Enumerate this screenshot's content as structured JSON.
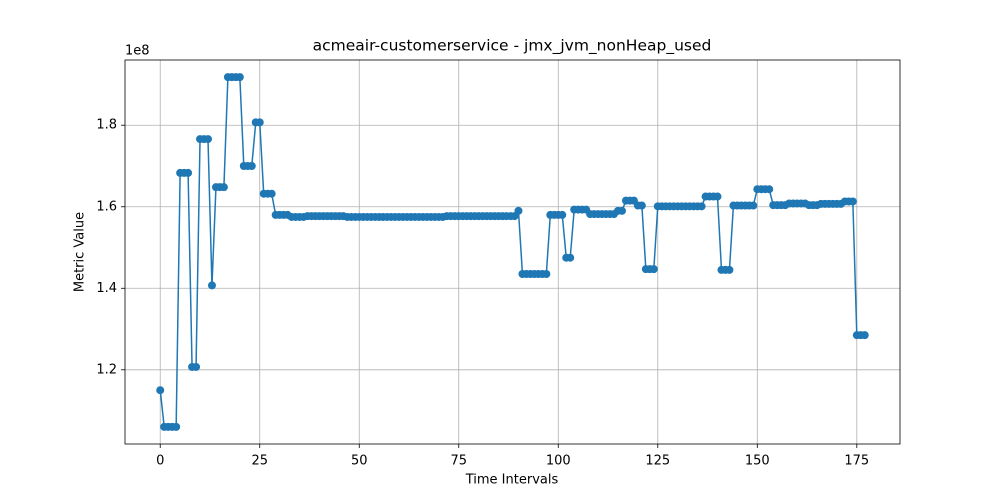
{
  "chart_data": {
    "type": "line",
    "title": "acmeair-customerservice - jmx_jvm_nonHeap_used",
    "x_label": "Time Intervals",
    "y_label": "Metric Value",
    "y_offset_text": "1e8",
    "color": "#1f77b4",
    "grid": true,
    "xlim": [
      -8.85,
      185.85
    ],
    "ylim": [
      1.018,
      1.96
    ],
    "xticks": [
      0,
      25,
      50,
      75,
      100,
      125,
      150,
      175
    ],
    "yticks": [
      1.2,
      1.4,
      1.6,
      1.8
    ],
    "x": [
      0,
      1,
      2,
      3,
      4,
      5,
      6,
      7,
      8,
      9,
      10,
      11,
      12,
      13,
      14,
      15,
      16,
      17,
      18,
      19,
      20,
      21,
      22,
      23,
      24,
      25,
      26,
      27,
      28,
      29,
      30,
      31,
      32,
      33,
      34,
      35,
      36,
      37,
      38,
      39,
      40,
      41,
      42,
      43,
      44,
      45,
      46,
      47,
      48,
      49,
      50,
      51,
      52,
      53,
      54,
      55,
      56,
      57,
      58,
      59,
      60,
      61,
      62,
      63,
      64,
      65,
      66,
      67,
      68,
      69,
      70,
      71,
      72,
      73,
      74,
      75,
      76,
      77,
      78,
      79,
      80,
      81,
      82,
      83,
      84,
      85,
      86,
      87,
      88,
      89,
      90,
      91,
      92,
      93,
      94,
      95,
      96,
      97,
      98,
      99,
      100,
      101,
      102,
      103,
      104,
      105,
      106,
      107,
      108,
      109,
      110,
      111,
      112,
      113,
      114,
      115,
      116,
      117,
      118,
      119,
      120,
      121,
      122,
      123,
      124,
      125,
      126,
      127,
      128,
      129,
      130,
      131,
      132,
      133,
      134,
      135,
      136,
      137,
      138,
      139,
      140,
      141,
      142,
      143,
      144,
      145,
      146,
      147,
      148,
      149,
      150,
      151,
      152,
      153,
      154,
      155,
      156,
      157,
      158,
      159,
      160,
      161,
      162,
      163,
      164,
      165,
      166,
      167,
      168,
      169,
      170,
      171,
      172,
      173,
      174,
      175,
      176,
      177
    ],
    "values": [
      1.15,
      1.06,
      1.06,
      1.06,
      1.06,
      1.683,
      1.683,
      1.683,
      1.207,
      1.207,
      1.766,
      1.766,
      1.766,
      1.407,
      1.648,
      1.648,
      1.648,
      1.918,
      1.918,
      1.918,
      1.918,
      1.7,
      1.7,
      1.7,
      1.807,
      1.807,
      1.632,
      1.632,
      1.632,
      1.58,
      1.58,
      1.58,
      1.58,
      1.575,
      1.575,
      1.575,
      1.575,
      1.577,
      1.577,
      1.577,
      1.577,
      1.577,
      1.577,
      1.577,
      1.577,
      1.577,
      1.577,
      1.575,
      1.575,
      1.575,
      1.575,
      1.575,
      1.575,
      1.575,
      1.575,
      1.575,
      1.575,
      1.575,
      1.575,
      1.575,
      1.575,
      1.575,
      1.575,
      1.575,
      1.575,
      1.575,
      1.575,
      1.575,
      1.575,
      1.575,
      1.575,
      1.575,
      1.577,
      1.577,
      1.577,
      1.577,
      1.577,
      1.577,
      1.577,
      1.577,
      1.577,
      1.577,
      1.577,
      1.577,
      1.577,
      1.577,
      1.577,
      1.577,
      1.577,
      1.577,
      1.59,
      1.435,
      1.435,
      1.435,
      1.435,
      1.435,
      1.435,
      1.435,
      1.58,
      1.58,
      1.58,
      1.58,
      1.475,
      1.475,
      1.593,
      1.593,
      1.593,
      1.593,
      1.582,
      1.582,
      1.582,
      1.582,
      1.582,
      1.582,
      1.582,
      1.59,
      1.59,
      1.615,
      1.615,
      1.615,
      1.603,
      1.603,
      1.447,
      1.447,
      1.447,
      1.601,
      1.601,
      1.601,
      1.601,
      1.601,
      1.601,
      1.601,
      1.601,
      1.601,
      1.601,
      1.601,
      1.601,
      1.625,
      1.625,
      1.625,
      1.625,
      1.445,
      1.445,
      1.445,
      1.603,
      1.603,
      1.603,
      1.603,
      1.603,
      1.603,
      1.643,
      1.643,
      1.643,
      1.643,
      1.604,
      1.604,
      1.604,
      1.604,
      1.608,
      1.608,
      1.608,
      1.608,
      1.608,
      1.604,
      1.604,
      1.604,
      1.607,
      1.607,
      1.607,
      1.607,
      1.607,
      1.607,
      1.613,
      1.613,
      1.613,
      1.285,
      1.285,
      1.285
    ]
  }
}
